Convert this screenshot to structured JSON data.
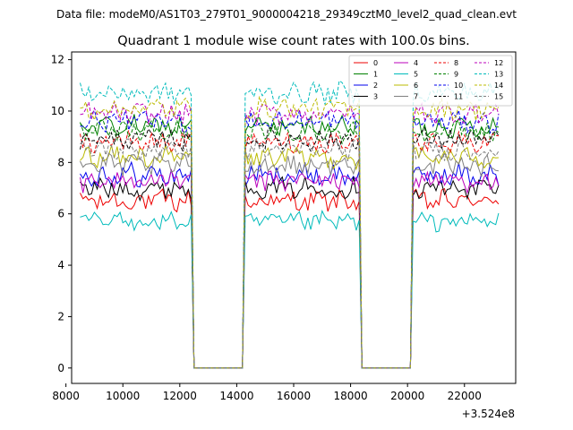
{
  "chart_data": {
    "type": "line",
    "suptitle": "Data file: modeM0/AS1T03_279T01_9000004218_29349cztM0_level2_quad_clean.evt",
    "title": "Quadrant 1 module wise count rates with 100.0s bins.",
    "xlabel": "",
    "ylabel": "",
    "x_offset_label": "+3.524e8",
    "xlim": [
      8200,
      23800
    ],
    "ylim": [
      -0.6,
      12.3
    ],
    "x_ticks": [
      8000,
      10000,
      12000,
      14000,
      16000,
      18000,
      20000,
      22000
    ],
    "y_ticks": [
      0,
      2,
      4,
      6,
      8,
      10,
      12
    ],
    "x_tick_labels": [
      "8000",
      "10000",
      "12000",
      "14000",
      "16000",
      "18000",
      "20000",
      "22000"
    ],
    "y_tick_labels": [
      "0",
      "2",
      "4",
      "6",
      "8",
      "10",
      "12"
    ],
    "x_start": 8500,
    "bin": 100,
    "n_bins": 148,
    "gaps": [
      [
        12400,
        14300
      ],
      [
        18300,
        20200
      ]
    ],
    "legend_position": "top-right",
    "series": [
      {
        "name": "0",
        "level": 6.5,
        "color": "#ee0000",
        "dash": false,
        "amp": 0.35
      },
      {
        "name": "1",
        "level": 9.4,
        "color": "#008000",
        "dash": false,
        "amp": 0.35
      },
      {
        "name": "2",
        "level": 7.5,
        "color": "#0000ee",
        "dash": false,
        "amp": 0.4
      },
      {
        "name": "3",
        "level": 7.0,
        "color": "#000000",
        "dash": false,
        "amp": 0.35
      },
      {
        "name": "4",
        "level": 7.3,
        "color": "#bb00bb",
        "dash": false,
        "amp": 0.35
      },
      {
        "name": "5",
        "level": 5.7,
        "color": "#00bbbb",
        "dash": false,
        "amp": 0.3
      },
      {
        "name": "6",
        "level": 8.2,
        "color": "#bbbb00",
        "dash": false,
        "amp": 0.35
      },
      {
        "name": "7",
        "level": 7.9,
        "color": "#808080",
        "dash": false,
        "amp": 0.35
      },
      {
        "name": "8",
        "level": 8.8,
        "color": "#ee0000",
        "dash": true,
        "amp": 0.35
      },
      {
        "name": "9",
        "level": 9.2,
        "color": "#008000",
        "dash": true,
        "amp": 0.35
      },
      {
        "name": "10",
        "level": 9.6,
        "color": "#0000ee",
        "dash": true,
        "amp": 0.35
      },
      {
        "name": "11",
        "level": 8.9,
        "color": "#000000",
        "dash": true,
        "amp": 0.35
      },
      {
        "name": "12",
        "level": 9.9,
        "color": "#bb00bb",
        "dash": true,
        "amp": 0.35
      },
      {
        "name": "13",
        "level": 10.7,
        "color": "#00bbbb",
        "dash": true,
        "amp": 0.35
      },
      {
        "name": "14",
        "level": 10.1,
        "color": "#bbbb00",
        "dash": true,
        "amp": 0.35
      },
      {
        "name": "15",
        "level": 8.5,
        "color": "#808080",
        "dash": true,
        "amp": 0.35
      }
    ]
  }
}
